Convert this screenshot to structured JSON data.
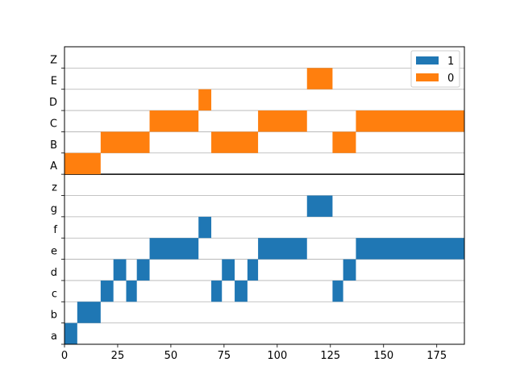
{
  "chart_data": {
    "type": "broken_barh",
    "xlim": [
      0,
      188
    ],
    "x_ticks": [
      0,
      25,
      50,
      75,
      100,
      125,
      150,
      175
    ],
    "x_tick_labels": [
      "0",
      "25",
      "50",
      "75",
      "100",
      "125",
      "150",
      "175"
    ],
    "grid": "horizontal lines at row boundaries",
    "colors": {
      "series_1": "#1f77b4",
      "series_0": "#ff7f0e",
      "grid": "#b0b0b0",
      "frame": "#000000"
    },
    "legend": {
      "placement": "top-right of upper panel",
      "entries": [
        {
          "label": "1",
          "color": "#1f77b4"
        },
        {
          "label": "0",
          "color": "#ff7f0e"
        }
      ]
    },
    "rows": [
      {
        "label": "Z",
        "series": "0",
        "segments": []
      },
      {
        "label": "E",
        "series": "0",
        "segments": [
          [
            114,
            126
          ]
        ]
      },
      {
        "label": "D",
        "series": "0",
        "segments": [
          [
            63,
            69
          ]
        ]
      },
      {
        "label": "C",
        "series": "0",
        "segments": [
          [
            40,
            63
          ],
          [
            91,
            114
          ],
          [
            137,
            188
          ]
        ]
      },
      {
        "label": "B",
        "series": "0",
        "segments": [
          [
            17,
            40
          ],
          [
            69,
            91
          ],
          [
            126,
            137
          ]
        ]
      },
      {
        "label": "A",
        "series": "0",
        "segments": [
          [
            0,
            17
          ]
        ]
      },
      {
        "label": "z",
        "series": "1",
        "segments": []
      },
      {
        "label": "g",
        "series": "1",
        "segments": [
          [
            114,
            126
          ]
        ]
      },
      {
        "label": "f",
        "series": "1",
        "segments": [
          [
            63,
            69
          ]
        ]
      },
      {
        "label": "e",
        "series": "1",
        "segments": [
          [
            40,
            63
          ],
          [
            91,
            114
          ],
          [
            137,
            188
          ]
        ]
      },
      {
        "label": "d",
        "series": "1",
        "segments": [
          [
            23,
            29
          ],
          [
            34,
            40
          ],
          [
            74,
            80
          ],
          [
            86,
            91
          ],
          [
            131,
            137
          ]
        ]
      },
      {
        "label": "c",
        "series": "1",
        "segments": [
          [
            17,
            23
          ],
          [
            29,
            34
          ],
          [
            69,
            74
          ],
          [
            80,
            86
          ],
          [
            126,
            131
          ]
        ]
      },
      {
        "label": "b",
        "series": "1",
        "segments": [
          [
            6,
            17
          ]
        ]
      },
      {
        "label": "a",
        "series": "1",
        "segments": [
          [
            0,
            6
          ]
        ]
      }
    ]
  }
}
